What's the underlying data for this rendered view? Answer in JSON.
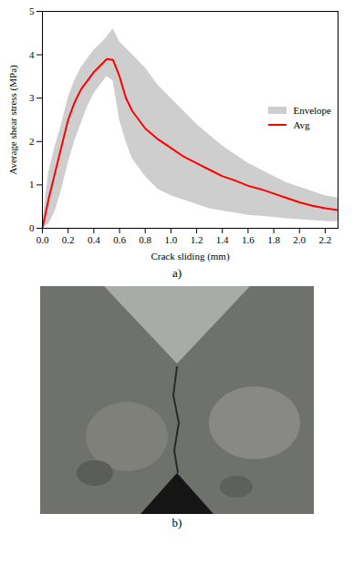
{
  "chart_data": {
    "type": "line",
    "caption": "a)",
    "x_label": "Crack sliding (mm)",
    "y_label": "Average shear stress (MPa)",
    "xlim": [
      0,
      2.3
    ],
    "ylim": [
      0,
      5
    ],
    "xticks": [
      {
        "value": 0,
        "label": "0.0"
      },
      0.2,
      0.4,
      0.6,
      0.8,
      {
        "value": 1,
        "label": "1.0"
      },
      1.2,
      1.4,
      1.6,
      1.8,
      {
        "value": 2,
        "label": "2.0"
      },
      2.2
    ],
    "yticks": [
      0,
      1,
      2,
      3,
      4,
      5
    ],
    "legend": "right",
    "x": [
      0,
      0.05,
      0.1,
      0.15,
      0.2,
      0.25,
      0.3,
      0.35,
      0.4,
      0.45,
      0.5,
      0.55,
      0.6,
      0.65,
      0.7,
      0.8,
      0.9,
      1.0,
      1.1,
      1.2,
      1.3,
      1.4,
      1.5,
      1.6,
      1.7,
      1.8,
      1.9,
      2.0,
      2.1,
      2.2,
      2.3
    ],
    "series": [
      {
        "name": "Envelope",
        "type": "area",
        "color": "#bdbdbd",
        "upper": [
          0.1,
          1.3,
          1.9,
          2.4,
          3.0,
          3.4,
          3.7,
          3.9,
          4.1,
          4.25,
          4.4,
          4.6,
          4.3,
          4.15,
          4.0,
          3.7,
          3.3,
          3.0,
          2.7,
          2.4,
          2.15,
          1.9,
          1.7,
          1.5,
          1.35,
          1.2,
          1.05,
          0.95,
          0.85,
          0.75,
          0.7
        ],
        "lower": [
          0,
          0.1,
          0.4,
          0.9,
          1.5,
          2.0,
          2.4,
          2.8,
          3.1,
          3.3,
          3.5,
          3.4,
          2.5,
          2.0,
          1.6,
          1.2,
          0.9,
          0.75,
          0.65,
          0.55,
          0.45,
          0.4,
          0.35,
          0.3,
          0.28,
          0.25,
          0.22,
          0.2,
          0.18,
          0.16,
          0.15
        ]
      },
      {
        "name": "Avg",
        "type": "line",
        "color": "#ff0000",
        "values": [
          0,
          0.7,
          1.3,
          1.9,
          2.5,
          2.9,
          3.2,
          3.4,
          3.6,
          3.75,
          3.9,
          3.88,
          3.5,
          3.0,
          2.7,
          2.3,
          2.05,
          1.85,
          1.65,
          1.5,
          1.35,
          1.2,
          1.1,
          0.98,
          0.9,
          0.8,
          0.7,
          0.6,
          0.52,
          0.46,
          0.42
        ]
      }
    ]
  },
  "figure_b": {
    "caption": "b)"
  }
}
